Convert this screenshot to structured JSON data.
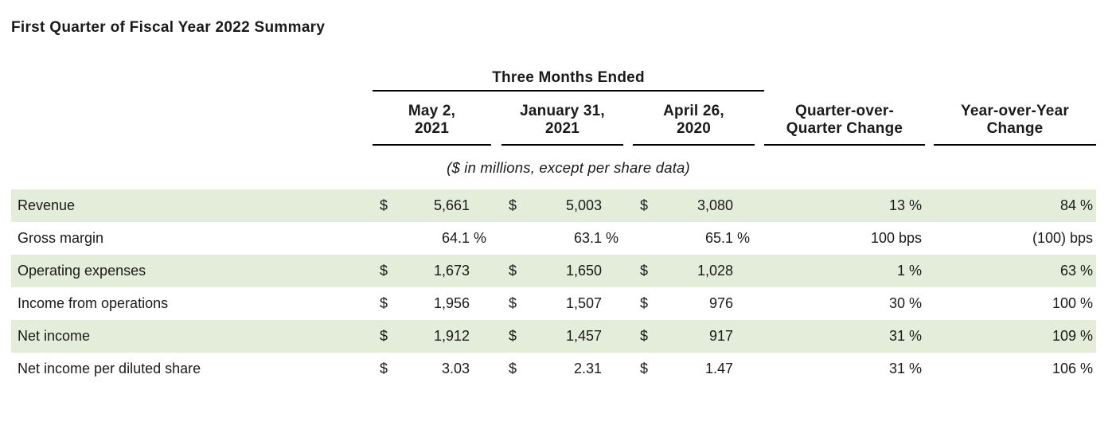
{
  "page": {
    "title": "First Quarter of Fiscal Year 2022 Summary"
  },
  "table": {
    "group_header": "Three Months Ended",
    "unit_note": "($ in millions, except per share data)",
    "period_headers": [
      {
        "line1": "May 2,",
        "line2": "2021"
      },
      {
        "line1": "January 31,",
        "line2": "2021"
      },
      {
        "line1": "April 26,",
        "line2": "2020"
      }
    ],
    "change_headers": [
      {
        "line1": "Quarter-over-",
        "line2": "Quarter Change"
      },
      {
        "line1": "Year-over-Year",
        "line2": "Change"
      }
    ],
    "rows": [
      {
        "label": "Revenue",
        "highlighted": true,
        "periods": [
          {
            "cur": "$",
            "num": "5,661",
            "suf": ""
          },
          {
            "cur": "$",
            "num": "5,003",
            "suf": ""
          },
          {
            "cur": "$",
            "num": "3,080",
            "suf": ""
          }
        ],
        "qoq": "13 %",
        "yoy": "84 %"
      },
      {
        "label": "Gross margin",
        "highlighted": false,
        "periods": [
          {
            "cur": "",
            "num": "64.1",
            "suf": "%"
          },
          {
            "cur": "",
            "num": "63.1",
            "suf": "%"
          },
          {
            "cur": "",
            "num": "65.1",
            "suf": "%"
          }
        ],
        "qoq": "100 bps",
        "yoy": "(100) bps"
      },
      {
        "label": "Operating expenses",
        "highlighted": true,
        "periods": [
          {
            "cur": "$",
            "num": "1,673",
            "suf": ""
          },
          {
            "cur": "$",
            "num": "1,650",
            "suf": ""
          },
          {
            "cur": "$",
            "num": "1,028",
            "suf": ""
          }
        ],
        "qoq": "1 %",
        "yoy": "63 %"
      },
      {
        "label": "Income from operations",
        "highlighted": false,
        "periods": [
          {
            "cur": "$",
            "num": "1,956",
            "suf": ""
          },
          {
            "cur": "$",
            "num": "1,507",
            "suf": ""
          },
          {
            "cur": "$",
            "num": "976",
            "suf": ""
          }
        ],
        "qoq": "30 %",
        "yoy": "100 %"
      },
      {
        "label": "Net income",
        "highlighted": true,
        "periods": [
          {
            "cur": "$",
            "num": "1,912",
            "suf": ""
          },
          {
            "cur": "$",
            "num": "1,457",
            "suf": ""
          },
          {
            "cur": "$",
            "num": "917",
            "suf": ""
          }
        ],
        "qoq": "31 %",
        "yoy": "109 %"
      },
      {
        "label": "Net income per diluted share",
        "highlighted": false,
        "periods": [
          {
            "cur": "$",
            "num": "3.03",
            "suf": ""
          },
          {
            "cur": "$",
            "num": "2.31",
            "suf": ""
          },
          {
            "cur": "$",
            "num": "1.47",
            "suf": ""
          }
        ],
        "qoq": "31 %",
        "yoy": "106 %"
      }
    ]
  },
  "colors": {
    "highlight_row": "#e4ecda",
    "text": "#1a1a1a",
    "rule": "#000000"
  }
}
